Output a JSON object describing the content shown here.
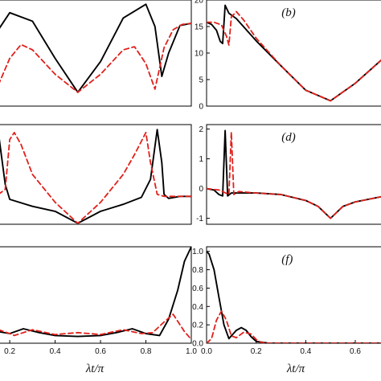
{
  "colors": {
    "solid": "#000000",
    "dashed": "#e0201b",
    "axis": "#000000"
  },
  "chart_data": [
    {
      "id": "a",
      "type": "line",
      "label": "",
      "xlim": [
        0.15,
        1.0
      ],
      "ylim": [
        0,
        1
      ],
      "xticks": [],
      "yticks": [],
      "series": [
        {
          "style": "solid",
          "x": [
            0.15,
            0.2,
            0.3,
            0.4,
            0.5,
            0.6,
            0.7,
            0.8,
            0.84,
            0.87,
            0.9,
            0.95,
            1.0
          ],
          "y": [
            0.72,
            0.88,
            0.8,
            0.45,
            0.13,
            0.42,
            0.83,
            0.96,
            0.75,
            0.28,
            0.5,
            0.76,
            0.78
          ]
        },
        {
          "style": "dashed",
          "x": [
            0.15,
            0.2,
            0.25,
            0.3,
            0.4,
            0.5,
            0.6,
            0.7,
            0.75,
            0.8,
            0.84,
            0.88,
            0.92,
            0.96,
            1.0
          ],
          "y": [
            0.2,
            0.45,
            0.58,
            0.53,
            0.3,
            0.13,
            0.3,
            0.53,
            0.56,
            0.4,
            0.16,
            0.55,
            0.72,
            0.77,
            0.78
          ]
        }
      ]
    },
    {
      "id": "b",
      "type": "line",
      "label": "(b)",
      "xlim": [
        0,
        0.72
      ],
      "ylim": [
        0,
        20
      ],
      "xticks": [],
      "yticks": [
        0,
        5,
        10,
        15,
        20
      ],
      "series": [
        {
          "style": "solid",
          "x": [
            0,
            0.02,
            0.04,
            0.055,
            0.065,
            0.075,
            0.09,
            0.12,
            0.2,
            0.3,
            0.4,
            0.5,
            0.6,
            0.72
          ],
          "y": [
            15.8,
            15.4,
            14.3,
            12.2,
            11.8,
            19.0,
            17.5,
            16.5,
            12.3,
            7.6,
            3.0,
            1.0,
            4.3,
            9.3
          ]
        },
        {
          "style": "dashed",
          "x": [
            0,
            0.03,
            0.06,
            0.08,
            0.09,
            0.1,
            0.12,
            0.15,
            0.2,
            0.3,
            0.4,
            0.5,
            0.6,
            0.72
          ],
          "y": [
            15.8,
            15.8,
            15.3,
            13.2,
            11.5,
            16.8,
            17.8,
            16.2,
            12.8,
            7.6,
            3.0,
            1.0,
            4.3,
            9.3
          ]
        }
      ]
    },
    {
      "id": "c",
      "type": "line",
      "label": "",
      "xlim": [
        0.15,
        1.0
      ],
      "ylim": [
        0,
        1
      ],
      "xticks": [],
      "yticks": [],
      "series": [
        {
          "style": "solid",
          "x": [
            0.15,
            0.18,
            0.2,
            0.3,
            0.4,
            0.5,
            0.6,
            0.7,
            0.78,
            0.82,
            0.85,
            0.87,
            0.88,
            0.9,
            0.95,
            1.0
          ],
          "y": [
            0.92,
            0.4,
            0.25,
            0.18,
            0.13,
            0.01,
            0.13,
            0.2,
            0.27,
            0.45,
            0.95,
            0.62,
            0.3,
            0.26,
            0.28,
            0.28
          ]
        },
        {
          "style": "dashed",
          "x": [
            0.15,
            0.18,
            0.2,
            0.22,
            0.25,
            0.3,
            0.4,
            0.5,
            0.6,
            0.7,
            0.75,
            0.8,
            0.82,
            0.85,
            0.88,
            0.92,
            1.0
          ],
          "y": [
            0.3,
            0.35,
            0.85,
            0.92,
            0.8,
            0.5,
            0.22,
            0.01,
            0.22,
            0.5,
            0.7,
            0.92,
            0.62,
            0.3,
            0.28,
            0.28,
            0.28
          ]
        }
      ]
    },
    {
      "id": "d",
      "type": "line",
      "label": "(d)",
      "xlim": [
        0,
        0.72
      ],
      "ylim": [
        -1.2,
        2.15
      ],
      "xticks": [],
      "yticks": [
        -1,
        0,
        1,
        2
      ],
      "series": [
        {
          "style": "solid",
          "x": [
            0,
            0.03,
            0.05,
            0.065,
            0.075,
            0.085,
            0.1,
            0.2,
            0.3,
            0.4,
            0.45,
            0.5,
            0.55,
            0.6,
            0.72
          ],
          "y": [
            0,
            -0.05,
            -0.2,
            -0.25,
            1.95,
            -0.25,
            -0.15,
            -0.15,
            -0.2,
            -0.4,
            -0.6,
            -1.0,
            -0.6,
            -0.45,
            -0.25
          ]
        },
        {
          "style": "dashed",
          "x": [
            0,
            0.05,
            0.09,
            0.1,
            0.11,
            0.13,
            0.2,
            0.3,
            0.4,
            0.45,
            0.5,
            0.55,
            0.6,
            0.72
          ],
          "y": [
            0,
            -0.05,
            -0.2,
            1.9,
            -0.2,
            -0.1,
            -0.15,
            -0.2,
            -0.4,
            -0.6,
            -1.0,
            -0.6,
            -0.45,
            -0.25
          ]
        }
      ]
    },
    {
      "id": "e",
      "type": "line",
      "label": "",
      "xlim": [
        0.15,
        1.0
      ],
      "ylim": [
        0,
        1
      ],
      "xticks": [
        0.2,
        0.4,
        0.6,
        0.8,
        1.0
      ],
      "xticklabels": [
        "0.2",
        "0.4",
        "0.6",
        "0.8",
        "1.0"
      ],
      "yticks": [],
      "series": [
        {
          "style": "solid",
          "x": [
            0.15,
            0.2,
            0.26,
            0.33,
            0.4,
            0.5,
            0.6,
            0.67,
            0.74,
            0.8,
            0.86,
            0.9,
            0.94,
            0.97,
            1.0
          ],
          "y": [
            0.12,
            0.1,
            0.15,
            0.11,
            0.08,
            0.07,
            0.08,
            0.11,
            0.15,
            0.1,
            0.08,
            0.25,
            0.55,
            0.85,
            1.0
          ]
        },
        {
          "style": "dashed",
          "x": [
            0.15,
            0.2,
            0.22,
            0.3,
            0.4,
            0.5,
            0.6,
            0.7,
            0.78,
            0.83,
            0.88,
            0.92,
            0.97,
            1.0
          ],
          "y": [
            0.14,
            0.1,
            0.08,
            0.14,
            0.09,
            0.11,
            0.09,
            0.14,
            0.1,
            0.11,
            0.22,
            0.3,
            0.12,
            0.04
          ]
        }
      ],
      "xlabel": "λt/π"
    },
    {
      "id": "f",
      "type": "line",
      "label": "(f)",
      "xlim": [
        0,
        0.72
      ],
      "ylim": [
        0,
        1.05
      ],
      "xticks": [
        0.0,
        0.2,
        0.4,
        0.6
      ],
      "xticklabels": [
        "0.0",
        "0.2",
        "0.4",
        "0.6"
      ],
      "yticks": [
        0.0,
        0.2,
        0.4,
        0.6,
        0.8,
        1.0
      ],
      "yticklabels": [
        "0.0",
        "0.2",
        "0.4",
        "0.6",
        "0.8",
        "1.0"
      ],
      "series": [
        {
          "style": "solid",
          "x": [
            0,
            0.01,
            0.03,
            0.05,
            0.07,
            0.09,
            0.1,
            0.12,
            0.14,
            0.16,
            0.18,
            0.2,
            0.25,
            0.72
          ],
          "y": [
            1.0,
            0.97,
            0.8,
            0.5,
            0.2,
            0.05,
            0.08,
            0.14,
            0.17,
            0.14,
            0.07,
            0.02,
            0.0,
            0.0
          ]
        },
        {
          "style": "dashed",
          "x": [
            0,
            0.02,
            0.04,
            0.06,
            0.08,
            0.1,
            0.12,
            0.15,
            0.18,
            0.2,
            0.22,
            0.25,
            0.72
          ],
          "y": [
            0.0,
            0.05,
            0.25,
            0.35,
            0.25,
            0.08,
            0.06,
            0.12,
            0.1,
            0.04,
            0.01,
            0.0,
            0.0
          ]
        }
      ],
      "xlabel": "λt/π"
    }
  ]
}
